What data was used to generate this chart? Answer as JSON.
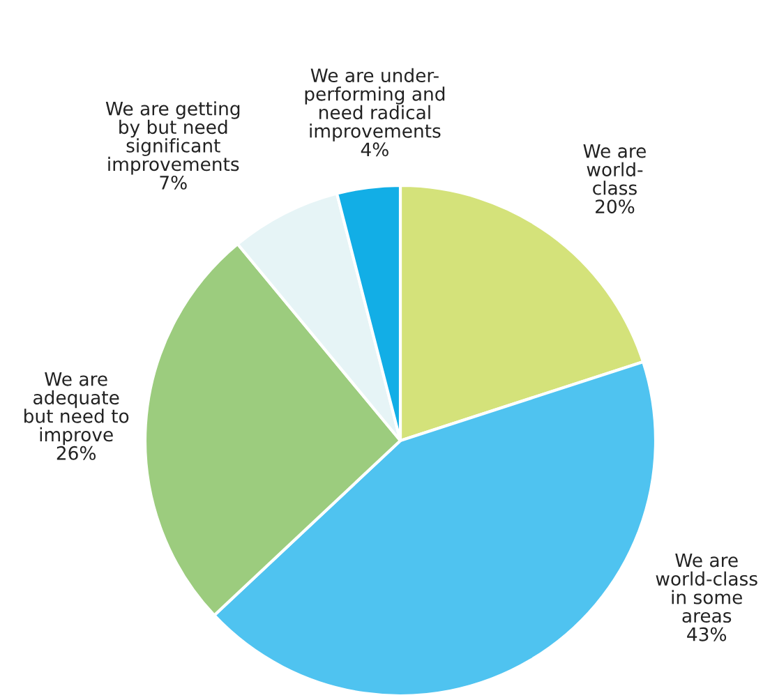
{
  "chart_data": {
    "type": "pie",
    "categories": [
      "We are\nworld-\nclass",
      "We are\nworld-class\nin some\nareas",
      "We are\nadequate\nbut need to\nimprove",
      "We are getting\nby but need\nsignificant\nimprovements",
      "We are under-\nperforming and\nneed radical\nimprovements"
    ],
    "values": [
      20,
      43,
      26,
      7,
      4
    ],
    "value_labels": [
      "20%",
      "43%",
      "26%",
      "7%",
      "4%"
    ],
    "colors": [
      "#d4e27a",
      "#4fc3f0",
      "#9ccc7e",
      "#e6f4f6",
      "#12aee6"
    ]
  }
}
